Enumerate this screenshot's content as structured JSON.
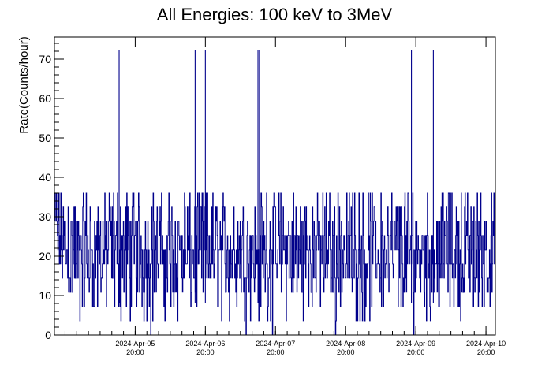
{
  "chart_data": {
    "type": "line",
    "title": "All Energies:  100 keV to 3MeV",
    "ylabel": "Rate(Counts/hour)",
    "xlabel": "",
    "ylim": [
      0,
      75.6
    ],
    "xlim": [
      "2024-04-04 16:22",
      "2024-04-10 23:13"
    ],
    "yticks": [
      0,
      10,
      20,
      30,
      40,
      50,
      60,
      70
    ],
    "xticks": [
      {
        "date": "2024-04-05 20:00",
        "line1": "2024-Apr-05",
        "line2": "20:00"
      },
      {
        "date": "2024-04-06 20:00",
        "line1": "2024-Apr-06",
        "line2": "20:00"
      },
      {
        "date": "2024-04-07 20:00",
        "line1": "2024-Apr-07",
        "line2": "20:00"
      },
      {
        "date": "2024-04-08 20:00",
        "line1": "2024-Apr-08",
        "line2": "20:00"
      },
      {
        "date": "2024-04-09 20:00",
        "line1": "2024-Apr-09",
        "line2": "20:00"
      },
      {
        "date": "2024-04-10 20:00",
        "line1": "2024-Apr-10",
        "line2": "20:00"
      }
    ],
    "grid": false,
    "color": "#00008b",
    "series": [
      {
        "x": [
          "2024-04-04 16:30",
          "2024-04-04 20:00",
          "2024-04-05 00:00",
          "2024-04-05 04:00",
          "2024-04-05 08:00",
          "2024-04-05 12:00",
          "2024-04-05 16:00",
          "2024-04-05 20:00",
          "2024-04-06 00:00",
          "2024-04-06 04:00",
          "2024-04-06 08:00",
          "2024-04-06 12:00",
          "2024-04-06 16:00",
          "2024-04-06 20:00",
          "2024-04-07 00:00",
          "2024-04-07 04:00",
          "2024-04-07 08:00",
          "2024-04-07 12:00",
          "2024-04-07 16:00",
          "2024-04-07 20:00",
          "2024-04-08 00:00",
          "2024-04-08 04:00",
          "2024-04-08 08:00",
          "2024-04-08 12:00",
          "2024-04-08 16:00",
          "2024-04-08 20:00",
          "2024-04-09 00:00",
          "2024-04-09 04:00",
          "2024-04-09 08:00",
          "2024-04-09 12:00",
          "2024-04-09 16:00",
          "2024-04-09 20:00",
          "2024-04-10 00:00",
          "2024-04-10 04:00",
          "2024-04-10 08:00",
          "2024-04-10 12:00",
          "2024-04-10 16:00",
          "2024-04-10 20:00",
          "2024-04-10 23:00"
        ],
        "y": [
          36,
          24,
          18,
          20,
          21,
          22,
          20,
          21,
          19,
          22,
          20,
          21,
          20,
          22,
          21,
          20,
          22,
          21,
          20,
          22,
          21,
          20,
          21,
          22,
          20,
          21,
          22,
          20,
          21,
          22,
          20,
          21,
          20,
          22,
          21,
          20,
          21,
          22,
          20
        ]
      }
    ],
    "envelope": {
      "min": 0,
      "typical_max": 36,
      "peak": 72.2,
      "peak_dates": [
        "2024-04-05 14:30",
        "2024-04-06 16:30",
        "2024-04-06 20:00",
        "2024-04-07 14:00",
        "2024-04-07 14:30",
        "2024-04-09 18:30",
        "2024-04-10 02:00"
      ]
    }
  }
}
